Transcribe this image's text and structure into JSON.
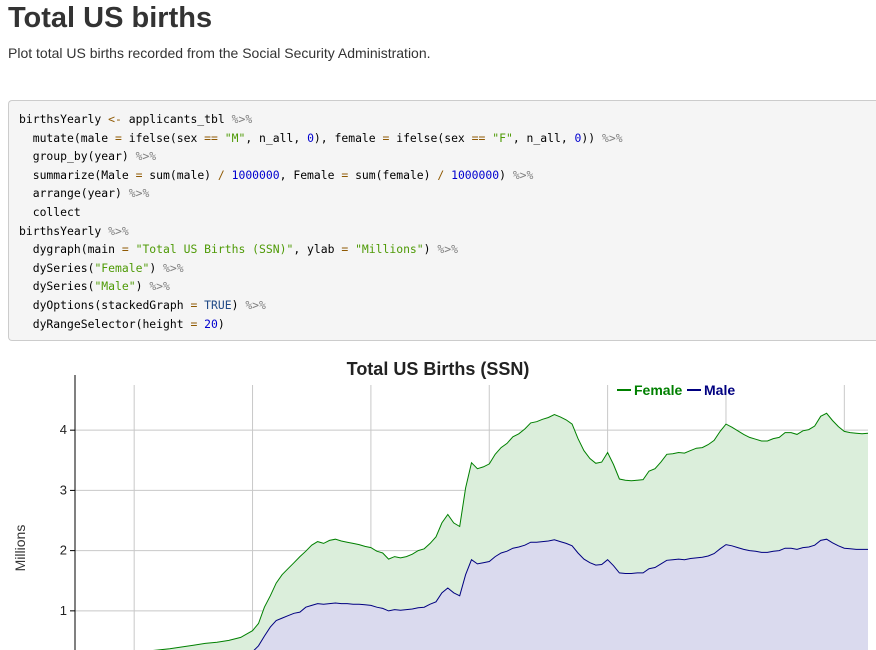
{
  "page": {
    "title": "Total US births",
    "description": "Plot total US births recorded from the Social Security Administration."
  },
  "code": {
    "lines": [
      [
        [
          "plain",
          "birthsYearly "
        ],
        [
          "op",
          "<-"
        ],
        [
          "plain",
          " applicants_tbl "
        ],
        [
          "pipe",
          "%>%"
        ]
      ],
      [
        [
          "plain",
          "  mutate(male "
        ],
        [
          "op",
          "="
        ],
        [
          "plain",
          " ifelse(sex "
        ],
        [
          "op",
          "=="
        ],
        [
          "plain",
          " "
        ],
        [
          "str",
          "\"M\""
        ],
        [
          "plain",
          ", n_all, "
        ],
        [
          "num",
          "0"
        ],
        [
          "plain",
          "), female "
        ],
        [
          "op",
          "="
        ],
        [
          "plain",
          " ifelse(sex "
        ],
        [
          "op",
          "=="
        ],
        [
          "plain",
          " "
        ],
        [
          "str",
          "\"F\""
        ],
        [
          "plain",
          ", n_all, "
        ],
        [
          "num",
          "0"
        ],
        [
          "plain",
          ")) "
        ],
        [
          "pipe",
          "%>%"
        ]
      ],
      [
        [
          "plain",
          "  group_by(year) "
        ],
        [
          "pipe",
          "%>%"
        ]
      ],
      [
        [
          "plain",
          "  summarize(Male "
        ],
        [
          "op",
          "="
        ],
        [
          "plain",
          " sum(male) "
        ],
        [
          "op",
          "/"
        ],
        [
          "plain",
          " "
        ],
        [
          "num",
          "1000000"
        ],
        [
          "plain",
          ", Female "
        ],
        [
          "op",
          "="
        ],
        [
          "plain",
          " sum(female) "
        ],
        [
          "op",
          "/"
        ],
        [
          "plain",
          " "
        ],
        [
          "num",
          "1000000"
        ],
        [
          "plain",
          ") "
        ],
        [
          "pipe",
          "%>%"
        ]
      ],
      [
        [
          "plain",
          "  arrange(year) "
        ],
        [
          "pipe",
          "%>%"
        ]
      ],
      [
        [
          "plain",
          "  collect"
        ]
      ],
      [
        [
          "plain",
          "birthsYearly "
        ],
        [
          "pipe",
          "%>%"
        ]
      ],
      [
        [
          "plain",
          "  dygraph(main "
        ],
        [
          "op",
          "="
        ],
        [
          "plain",
          " "
        ],
        [
          "str",
          "\"Total US Births (SSN)\""
        ],
        [
          "plain",
          ", ylab "
        ],
        [
          "op",
          "="
        ],
        [
          "plain",
          " "
        ],
        [
          "str",
          "\"Millions\""
        ],
        [
          "plain",
          ") "
        ],
        [
          "pipe",
          "%>%"
        ]
      ],
      [
        [
          "plain",
          "  dySeries("
        ],
        [
          "str",
          "\"Female\""
        ],
        [
          "plain",
          ") "
        ],
        [
          "pipe",
          "%>%"
        ]
      ],
      [
        [
          "plain",
          "  dySeries("
        ],
        [
          "str",
          "\"Male\""
        ],
        [
          "plain",
          ") "
        ],
        [
          "pipe",
          "%>%"
        ]
      ],
      [
        [
          "plain",
          "  dyOptions(stackedGraph "
        ],
        [
          "op",
          "="
        ],
        [
          "plain",
          " "
        ],
        [
          "kw",
          "TRUE"
        ],
        [
          "plain",
          ") "
        ],
        [
          "pipe",
          "%>%"
        ]
      ],
      [
        [
          "plain",
          "  dyRangeSelector(height "
        ],
        [
          "op",
          "="
        ],
        [
          "plain",
          " "
        ],
        [
          "num",
          "20"
        ],
        [
          "plain",
          ")"
        ]
      ]
    ]
  },
  "colors": {
    "female": "#008000",
    "male": "#000080",
    "female_fill": "#dbeedb",
    "male_fill": "#dadaee"
  },
  "chart_data": {
    "type": "area",
    "stacked": true,
    "title": "Total US Births (SSN)",
    "ylabel": "Millions",
    "xlabel": "",
    "legend": "top-right",
    "legend_entries": [
      "Female",
      "Male"
    ],
    "yticks": [
      1,
      2,
      3,
      4
    ],
    "ylim": [
      0.35,
      4.75
    ],
    "xlim": [
      1880,
      2014
    ],
    "grid": true,
    "x": [
      1880,
      1882,
      1884,
      1886,
      1888,
      1890,
      1892,
      1894,
      1896,
      1898,
      1900,
      1902,
      1904,
      1906,
      1908,
      1910,
      1911,
      1912,
      1913,
      1914,
      1915,
      1916,
      1917,
      1918,
      1919,
      1920,
      1921,
      1922,
      1923,
      1924,
      1925,
      1926,
      1927,
      1928,
      1929,
      1930,
      1931,
      1932,
      1933,
      1934,
      1935,
      1936,
      1937,
      1938,
      1939,
      1940,
      1941,
      1942,
      1943,
      1944,
      1945,
      1946,
      1947,
      1948,
      1949,
      1950,
      1951,
      1952,
      1953,
      1954,
      1955,
      1956,
      1957,
      1958,
      1959,
      1960,
      1961,
      1962,
      1963,
      1964,
      1965,
      1966,
      1967,
      1968,
      1969,
      1970,
      1971,
      1972,
      1973,
      1974,
      1975,
      1976,
      1977,
      1978,
      1979,
      1980,
      1981,
      1982,
      1983,
      1984,
      1985,
      1986,
      1987,
      1988,
      1989,
      1990,
      1991,
      1992,
      1993,
      1994,
      1995,
      1996,
      1997,
      1998,
      1999,
      2000,
      2001,
      2002,
      2003,
      2004,
      2005,
      2006,
      2007,
      2008,
      2009,
      2010,
      2011,
      2012,
      2013,
      2014
    ],
    "series": [
      {
        "name": "Female",
        "values": [
          0.09,
          0.11,
          0.12,
          0.13,
          0.14,
          0.15,
          0.17,
          0.18,
          0.19,
          0.21,
          0.23,
          0.24,
          0.25,
          0.27,
          0.29,
          0.35,
          0.37,
          0.48,
          0.52,
          0.62,
          0.72,
          0.78,
          0.84,
          0.92,
          0.93,
          1.0,
          1.03,
          1.01,
          1.05,
          1.06,
          1.04,
          1.02,
          1.01,
          0.99,
          0.97,
          0.96,
          0.93,
          0.92,
          0.86,
          0.88,
          0.87,
          0.88,
          0.91,
          0.95,
          0.97,
          1.01,
          1.08,
          1.16,
          1.22,
          1.16,
          1.15,
          1.44,
          1.61,
          1.58,
          1.59,
          1.62,
          1.7,
          1.75,
          1.79,
          1.85,
          1.88,
          1.93,
          1.98,
          2.0,
          2.03,
          2.05,
          2.08,
          2.07,
          2.05,
          2.02,
          1.9,
          1.8,
          1.73,
          1.69,
          1.7,
          1.78,
          1.68,
          1.56,
          1.55,
          1.54,
          1.54,
          1.55,
          1.62,
          1.64,
          1.69,
          1.76,
          1.76,
          1.77,
          1.77,
          1.79,
          1.82,
          1.82,
          1.85,
          1.88,
          1.95,
          2.0,
          1.97,
          1.94,
          1.91,
          1.88,
          1.86,
          1.85,
          1.85,
          1.87,
          1.88,
          1.92,
          1.92,
          1.91,
          1.94,
          1.95,
          1.98,
          2.06,
          2.09,
          2.03,
          1.98,
          1.94,
          1.93,
          1.93,
          1.92,
          1.93
        ]
      },
      {
        "name": "Male",
        "values": [
          0.11,
          0.12,
          0.13,
          0.13,
          0.14,
          0.15,
          0.16,
          0.17,
          0.18,
          0.19,
          0.2,
          0.22,
          0.23,
          0.24,
          0.27,
          0.32,
          0.42,
          0.58,
          0.73,
          0.84,
          0.88,
          0.92,
          0.96,
          0.98,
          1.06,
          1.09,
          1.12,
          1.11,
          1.12,
          1.13,
          1.12,
          1.12,
          1.11,
          1.11,
          1.1,
          1.09,
          1.06,
          1.04,
          1.0,
          1.02,
          1.01,
          1.02,
          1.03,
          1.05,
          1.06,
          1.11,
          1.15,
          1.3,
          1.38,
          1.3,
          1.25,
          1.6,
          1.85,
          1.78,
          1.8,
          1.82,
          1.9,
          1.96,
          1.99,
          2.04,
          2.06,
          2.09,
          2.14,
          2.14,
          2.15,
          2.16,
          2.18,
          2.15,
          2.12,
          2.08,
          1.96,
          1.86,
          1.8,
          1.76,
          1.77,
          1.85,
          1.75,
          1.63,
          1.62,
          1.62,
          1.63,
          1.63,
          1.7,
          1.72,
          1.78,
          1.84,
          1.85,
          1.86,
          1.85,
          1.87,
          1.88,
          1.89,
          1.91,
          1.95,
          2.03,
          2.1,
          2.08,
          2.05,
          2.02,
          2.0,
          1.99,
          1.97,
          1.97,
          1.99,
          2.0,
          2.04,
          2.04,
          2.02,
          2.05,
          2.06,
          2.09,
          2.17,
          2.19,
          2.13,
          2.08,
          2.04,
          2.03,
          2.02,
          2.02,
          2.02
        ]
      }
    ]
  }
}
